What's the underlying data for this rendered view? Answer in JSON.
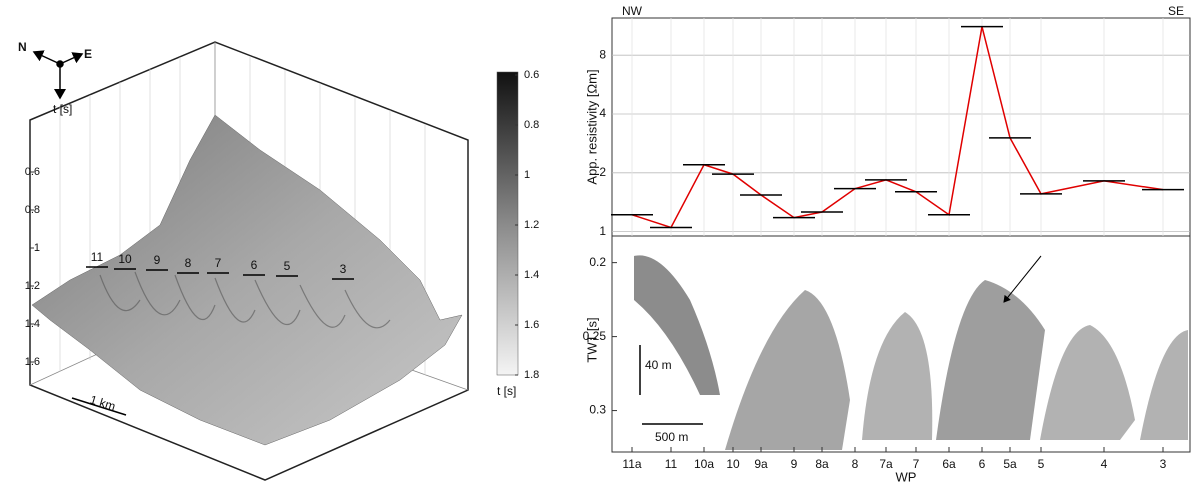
{
  "surface_panel": {
    "compass": {
      "north": "N",
      "east": "E",
      "down": "t [s]"
    },
    "z_axis": {
      "ticks": [
        0.6,
        0.8,
        1.0,
        1.2,
        1.4,
        1.6
      ]
    },
    "colorbar": {
      "clim": [
        0.6,
        1.8
      ],
      "ticks": [
        0.6,
        0.8,
        1.0,
        1.2,
        1.4,
        1.6,
        1.8
      ],
      "label": "t [s]"
    },
    "scale_bar": "1 km",
    "wp_labels": [
      "11",
      "10",
      "9",
      "8",
      "7",
      "6",
      "5",
      "3"
    ]
  },
  "chart_data": [
    {
      "type": "line",
      "ylabel": "App. resistivity [Ωm]",
      "left_label": "NW",
      "right_label": "SE",
      "categories": [
        "11a",
        "11",
        "10a",
        "10",
        "9a",
        "9",
        "8a",
        "8",
        "7a",
        "7",
        "6a",
        "6",
        "5a",
        "5",
        "4",
        "3"
      ],
      "values": [
        1.22,
        1.05,
        2.2,
        1.97,
        1.54,
        1.18,
        1.26,
        1.66,
        1.84,
        1.6,
        1.22,
        11.2,
        3.02,
        1.56,
        1.82,
        1.64
      ],
      "line_color": "#e00000",
      "bar_color": "#000000",
      "log_y": true,
      "ylim": [
        0.95,
        12.4
      ],
      "yticks": [
        1,
        2,
        4,
        8
      ],
      "grid": true
    },
    {
      "type": "image",
      "ylabel": "TWT [s]",
      "xlabel": "WP",
      "categories": [
        "11a",
        "11",
        "10a",
        "10",
        "9a",
        "9",
        "8a",
        "8",
        "7a",
        "7",
        "6a",
        "6",
        "5a",
        "5",
        "4",
        "3"
      ],
      "ylim": [
        0.182,
        0.328
      ],
      "yticks": [
        0.2,
        0.25,
        0.3
      ],
      "vertical_scale": "40 m",
      "horizontal_scale": "500 m"
    }
  ]
}
